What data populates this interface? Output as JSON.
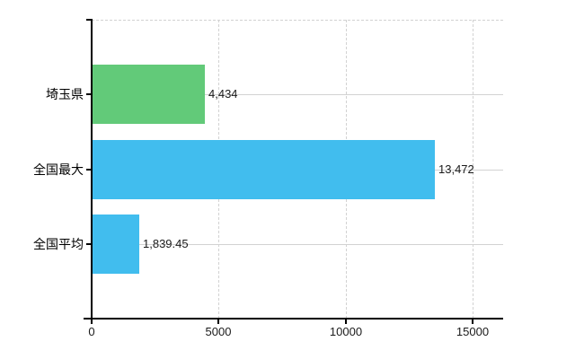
{
  "chart_data": {
    "type": "bar",
    "orientation": "horizontal",
    "title": "",
    "xlabel": "",
    "ylabel": "",
    "categories": [
      "埼玉県",
      "全国最大",
      "全国平均"
    ],
    "values": [
      4434,
      13472,
      1839.45
    ],
    "value_labels": [
      "4,434",
      "13,472",
      "1,839.45"
    ],
    "bar_colors": [
      "#62ca79",
      "#41bdee",
      "#41bdee"
    ],
    "x_tick_values": [
      0,
      5000,
      10000,
      15000
    ],
    "x_tick_labels": [
      "0",
      "5000",
      "10000",
      "15000"
    ],
    "xlim": [
      0,
      16200
    ],
    "grid": true,
    "legend": false
  },
  "style": {
    "background": "#ffffff",
    "grid_color": "#d2d2d2",
    "axis_color": "#000000",
    "category_label_color": "#000000",
    "value_label_color": "#1a1a1a"
  }
}
